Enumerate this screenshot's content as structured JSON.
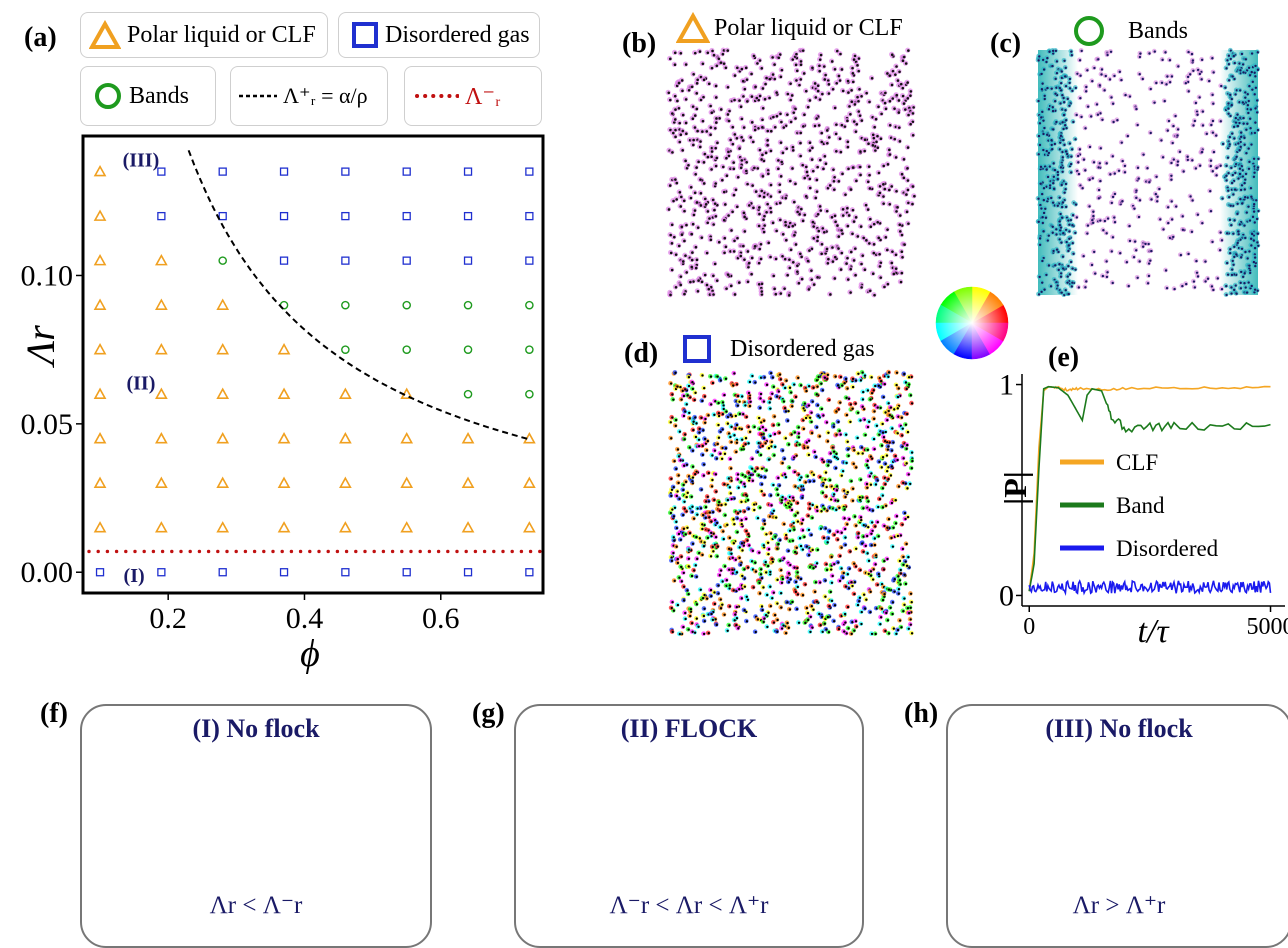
{
  "panel_labels": {
    "a": "(a)",
    "b": "(b)",
    "c": "(c)",
    "d": "(d)",
    "e": "(e)",
    "f": "(f)",
    "g": "(g)",
    "h": "(h)"
  },
  "legend": {
    "polar": "Polar liquid or CLF",
    "disordered": "Disordered gas",
    "bands": "Bands",
    "lambda_plus": "Λ⁺ᵣ = α/ρ",
    "lambda_minus": "Λ⁻ᵣ"
  },
  "colors": {
    "polar": "#f0a020",
    "disordered": "#2030d0",
    "bands": "#1e9a1e",
    "lambda_minus": "#c01010",
    "clf_line": "#f5a623",
    "band_line": "#1c7a1c",
    "disordered_line": "#1a1aee",
    "scheme_text": "#1a1a66"
  },
  "panel_b": {
    "title": "Polar liquid or CLF"
  },
  "panel_c": {
    "title": "Bands"
  },
  "panel_d": {
    "title": "Disordered gas"
  },
  "chart_data": [
    {
      "type": "scatter",
      "title": "",
      "xlabel": "ϕ",
      "ylabel": "Λr",
      "xlim": [
        0.075,
        0.75
      ],
      "ylim": [
        -0.007,
        0.147
      ],
      "xticks": [
        0.2,
        0.4,
        0.6
      ],
      "yticks": [
        0.0,
        0.05,
        0.1
      ],
      "xtick_labels": [
        "0.2",
        "0.4",
        "0.6"
      ],
      "ytick_labels": [
        "0.00",
        "0.05",
        "0.10"
      ],
      "phi": [
        0.1,
        0.19,
        0.28,
        0.37,
        0.46,
        0.55,
        0.64,
        0.73
      ],
      "lambda": [
        0.0,
        0.015,
        0.03,
        0.045,
        0.06,
        0.075,
        0.09,
        0.105,
        0.12,
        0.135
      ],
      "grid_rows_bottom_to_top": [
        [
          "D",
          "D",
          "D",
          "D",
          "D",
          "D",
          "D",
          "D"
        ],
        [
          "P",
          "P",
          "P",
          "P",
          "P",
          "P",
          "P",
          "P"
        ],
        [
          "P",
          "P",
          "P",
          "P",
          "P",
          "P",
          "P",
          "P"
        ],
        [
          "P",
          "P",
          "P",
          "P",
          "P",
          "P",
          "P",
          "P"
        ],
        [
          "P",
          "P",
          "P",
          "P",
          "P",
          "P",
          "B",
          "B"
        ],
        [
          "P",
          "P",
          "P",
          "P",
          "B",
          "B",
          "B",
          "B"
        ],
        [
          "P",
          "P",
          "P",
          "B",
          "B",
          "B",
          "B",
          "B"
        ],
        [
          "P",
          "P",
          "B",
          "D",
          "D",
          "D",
          "D",
          "D"
        ],
        [
          "P",
          "D",
          "D",
          "D",
          "D",
          "D",
          "D",
          "D"
        ],
        [
          "P",
          "D",
          "D",
          "D",
          "D",
          "D",
          "D",
          "D"
        ]
      ],
      "lambda_plus_curve": {
        "alpha": 0.0327,
        "phi_range": [
          0.23,
          0.73
        ]
      },
      "lambda_minus": 0.007,
      "region_labels": [
        {
          "text": "(III)",
          "phi": 0.16,
          "lambda": 0.139
        },
        {
          "text": "(II)",
          "phi": 0.16,
          "lambda": 0.064
        },
        {
          "text": "(I)",
          "phi": 0.15,
          "lambda": -0.001
        }
      ]
    },
    {
      "type": "line",
      "title": "",
      "xlabel": "t/τ",
      "ylabel": "|P|",
      "xlim": [
        -150,
        5300
      ],
      "ylim": [
        -0.05,
        1.05
      ],
      "xticks": [
        0,
        5000
      ],
      "yticks": [
        0,
        1
      ],
      "legend_placement": "center",
      "series": [
        {
          "name": "CLF",
          "x": [
            0,
            100,
            200,
            300,
            400,
            600,
            800,
            1000,
            1500,
            2000,
            3000,
            4000,
            5000
          ],
          "values": [
            0.02,
            0.2,
            0.7,
            0.97,
            0.99,
            0.985,
            0.975,
            0.98,
            0.975,
            0.98,
            0.985,
            0.985,
            0.99
          ]
        },
        {
          "name": "Band",
          "x": [
            0,
            100,
            200,
            300,
            400,
            600,
            800,
            1000,
            1100,
            1200,
            1300,
            1500,
            1700,
            2000,
            2500,
            3000,
            4000,
            5000
          ],
          "values": [
            0.02,
            0.15,
            0.6,
            0.98,
            0.99,
            0.985,
            0.95,
            0.87,
            0.83,
            0.95,
            0.98,
            0.97,
            0.85,
            0.79,
            0.8,
            0.8,
            0.8,
            0.81
          ]
        },
        {
          "name": "Disordered",
          "x": [
            0,
            5000
          ],
          "values": [
            0.04,
            0.04
          ]
        }
      ]
    }
  ],
  "schemes": {
    "f": {
      "title": "(I) No flock",
      "condition": "Λr < Λ⁻r"
    },
    "g": {
      "title": "(II) FLOCK",
      "condition": "Λ⁻r < Λr < Λ⁺r"
    },
    "h": {
      "title": "(III) No flock",
      "condition": "Λr > Λ⁺r"
    }
  }
}
